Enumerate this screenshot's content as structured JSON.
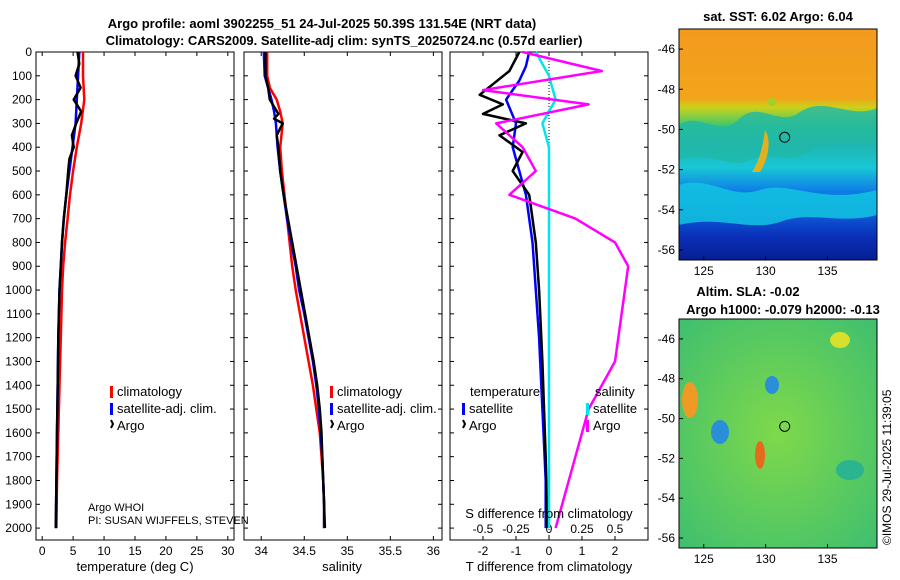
{
  "chart_data": [
    {
      "type": "line",
      "title": [
        "Argo profile: aoml 3902255_51 24-Jul-2025 50.39S 131.54E (NRT data)",
        "Climatology: CARS2009. Satellite-adj clim: synTS_20250724.nc (0.57d earlier)"
      ],
      "xlabel": "temperature (deg C)",
      "ylabel": "",
      "xlim": [
        -1,
        31
      ],
      "ylim": [
        2050,
        0
      ],
      "xticks": [
        "0",
        "5",
        "10",
        "15",
        "20",
        "25",
        "30"
      ],
      "yticks": [
        "0",
        "100",
        "200",
        "300",
        "400",
        "500",
        "600",
        "700",
        "800",
        "900",
        "1000",
        "1100",
        "1200",
        "1300",
        "1400",
        "1500",
        "1600",
        "1700",
        "1800",
        "1900",
        "2000"
      ],
      "legend": [
        "climatology",
        "satellite-adj. clim.",
        "Argo"
      ],
      "footnote": [
        "Argo WHOI",
        "PI: SUSAN WIJFFELS, STEVEN"
      ],
      "series": [
        {
          "name": "climatology",
          "color": "#ff0000",
          "points": [
            [
              6.6,
              0
            ],
            [
              6.6,
              100
            ],
            [
              6.8,
              200
            ],
            [
              6.3,
              300
            ],
            [
              5.6,
              400
            ],
            [
              5.0,
              500
            ],
            [
              4.5,
              600
            ],
            [
              4.1,
              700
            ],
            [
              3.7,
              800
            ],
            [
              3.4,
              900
            ],
            [
              3.2,
              1000
            ],
            [
              3.0,
              1200
            ],
            [
              2.8,
              1400
            ],
            [
              2.6,
              1600
            ],
            [
              2.4,
              1800
            ],
            [
              2.3,
              2000
            ]
          ]
        },
        {
          "name": "satellite-adj. clim.",
          "color": "#0000ff",
          "points": [
            [
              6.0,
              0
            ],
            [
              5.8,
              100
            ],
            [
              5.6,
              200
            ],
            [
              5.4,
              300
            ],
            [
              4.9,
              400
            ],
            [
              4.4,
              500
            ],
            [
              3.9,
              600
            ],
            [
              3.5,
              700
            ],
            [
              3.2,
              800
            ],
            [
              3.0,
              900
            ],
            [
              2.8,
              1000
            ],
            [
              2.6,
              1200
            ],
            [
              2.5,
              1400
            ],
            [
              2.4,
              1600
            ],
            [
              2.3,
              1800
            ],
            [
              2.2,
              2000
            ]
          ]
        },
        {
          "name": "Argo",
          "color": "#000000",
          "points": [
            [
              5.7,
              0
            ],
            [
              6.0,
              50
            ],
            [
              5.4,
              100
            ],
            [
              6.2,
              150
            ],
            [
              5.1,
              200
            ],
            [
              6.3,
              250
            ],
            [
              5.5,
              300
            ],
            [
              4.8,
              350
            ],
            [
              5.1,
              400
            ],
            [
              4.4,
              450
            ],
            [
              4.2,
              500
            ],
            [
              3.9,
              600
            ],
            [
              3.5,
              700
            ],
            [
              3.2,
              800
            ],
            [
              3.0,
              900
            ],
            [
              2.8,
              1000
            ],
            [
              2.6,
              1200
            ],
            [
              2.5,
              1400
            ],
            [
              2.4,
              1600
            ],
            [
              2.3,
              1800
            ],
            [
              2.2,
              2000
            ]
          ]
        }
      ]
    },
    {
      "type": "line",
      "xlabel": "salinity",
      "xlim": [
        33.8,
        36.1
      ],
      "ylim": [
        2050,
        0
      ],
      "xticks": [
        "34",
        "34.5",
        "35",
        "35.5",
        "36"
      ],
      "legend": [
        "climatology",
        "satellite-adj. clim.",
        "Argo"
      ],
      "series": [
        {
          "name": "climatology",
          "color": "#ff0000",
          "points": [
            [
              34.07,
              0
            ],
            [
              34.07,
              100
            ],
            [
              34.1,
              150
            ],
            [
              34.18,
              200
            ],
            [
              34.22,
              250
            ],
            [
              34.25,
              300
            ],
            [
              34.22,
              400
            ],
            [
              34.24,
              500
            ],
            [
              34.27,
              600
            ],
            [
              34.3,
              700
            ],
            [
              34.33,
              800
            ],
            [
              34.36,
              900
            ],
            [
              34.4,
              1000
            ],
            [
              34.45,
              1100
            ],
            [
              34.5,
              1200
            ],
            [
              34.55,
              1300
            ],
            [
              34.6,
              1400
            ],
            [
              34.64,
              1500
            ],
            [
              34.68,
              1600
            ],
            [
              34.7,
              1700
            ],
            [
              34.72,
              1800
            ],
            [
              34.73,
              1900
            ],
            [
              34.73,
              2000
            ]
          ]
        },
        {
          "name": "satellite-adj. clim.",
          "color": "#0000ff",
          "points": [
            [
              34.03,
              0
            ],
            [
              34.04,
              100
            ],
            [
              34.08,
              150
            ],
            [
              34.12,
              200
            ],
            [
              34.15,
              250
            ],
            [
              34.17,
              300
            ],
            [
              34.19,
              400
            ],
            [
              34.22,
              500
            ],
            [
              34.26,
              600
            ],
            [
              34.3,
              700
            ],
            [
              34.35,
              800
            ],
            [
              34.4,
              900
            ],
            [
              34.44,
              1000
            ],
            [
              34.5,
              1100
            ],
            [
              34.55,
              1200
            ],
            [
              34.6,
              1300
            ],
            [
              34.64,
              1400
            ],
            [
              34.67,
              1500
            ],
            [
              34.69,
              1600
            ],
            [
              34.71,
              1700
            ],
            [
              34.72,
              1800
            ],
            [
              34.73,
              1900
            ],
            [
              34.73,
              2000
            ]
          ]
        },
        {
          "name": "Argo",
          "color": "#000000",
          "points": [
            [
              34.05,
              0
            ],
            [
              34.05,
              100
            ],
            [
              34.08,
              150
            ],
            [
              34.1,
              200
            ],
            [
              34.2,
              260
            ],
            [
              34.15,
              280
            ],
            [
              34.25,
              300
            ],
            [
              34.18,
              350
            ],
            [
              34.2,
              400
            ],
            [
              34.22,
              500
            ],
            [
              34.26,
              600
            ],
            [
              34.31,
              700
            ],
            [
              34.36,
              800
            ],
            [
              34.41,
              900
            ],
            [
              34.46,
              1000
            ],
            [
              34.51,
              1100
            ],
            [
              34.56,
              1200
            ],
            [
              34.61,
              1300
            ],
            [
              34.65,
              1400
            ],
            [
              34.68,
              1500
            ],
            [
              34.7,
              1600
            ],
            [
              34.71,
              1700
            ],
            [
              34.72,
              1800
            ],
            [
              34.73,
              1900
            ],
            [
              34.74,
              2000
            ]
          ]
        }
      ]
    },
    {
      "type": "line",
      "xlabel": "T difference from climatology",
      "xlabel2": "S difference from climatology",
      "xlim": [
        -3,
        3
      ],
      "ylim": [
        2050,
        0
      ],
      "xticks": [
        "-2",
        "-1",
        "0",
        "1",
        "2"
      ],
      "xticks_s": [
        "-0.5",
        "-0.25",
        "0",
        "0.25",
        "0.5"
      ],
      "legend_left": {
        "heading": "temperature",
        "items": [
          "satellite",
          "Argo"
        ]
      },
      "legend_right": {
        "heading": "salinity",
        "items": [
          "satellite",
          "Argo"
        ]
      },
      "series": [
        {
          "name": "temperature satellite",
          "color": "#0000ff",
          "points": [
            [
              -0.6,
              0
            ],
            [
              -0.7,
              60
            ],
            [
              -0.9,
              120
            ],
            [
              -1.3,
              200
            ],
            [
              -1.0,
              300
            ],
            [
              -1.1,
              400
            ],
            [
              -0.9,
              500
            ],
            [
              -0.7,
              600
            ],
            [
              -0.6,
              700
            ],
            [
              -0.5,
              800
            ],
            [
              -0.4,
              1000
            ],
            [
              -0.3,
              1200
            ],
            [
              -0.2,
              1500
            ],
            [
              -0.1,
              1800
            ],
            [
              -0.1,
              2000
            ]
          ]
        },
        {
          "name": "temperature Argo",
          "color": "#000000",
          "points": [
            [
              -0.9,
              0
            ],
            [
              -1.2,
              80
            ],
            [
              -2.1,
              180
            ],
            [
              -1.4,
              220
            ],
            [
              -2.0,
              260
            ],
            [
              -0.7,
              300
            ],
            [
              -1.5,
              350
            ],
            [
              -0.8,
              420
            ],
            [
              -1.1,
              500
            ],
            [
              -0.6,
              600
            ],
            [
              -0.5,
              700
            ],
            [
              -0.4,
              800
            ],
            [
              -0.3,
              1000
            ],
            [
              -0.2,
              1300
            ],
            [
              -0.1,
              1700
            ],
            [
              -0.05,
              2000
            ]
          ]
        },
        {
          "name": "salinity satellite",
          "color": "#00e5ee",
          "points": [
            [
              -0.1,
              0
            ],
            [
              0.0,
              100
            ],
            [
              0.05,
              200
            ],
            [
              -0.05,
              300
            ],
            [
              0.0,
              400
            ],
            [
              0.0,
              600
            ],
            [
              0.0,
              800
            ],
            [
              0.0,
              1000
            ],
            [
              0.0,
              1500
            ],
            [
              0.0,
              2000
            ]
          ]
        },
        {
          "name": "salinity Argo",
          "color": "#ff00ff",
          "points": [
            [
              -0.2,
              0
            ],
            [
              0.4,
              80
            ],
            [
              -0.5,
              160
            ],
            [
              0.3,
              220
            ],
            [
              -0.4,
              300
            ],
            [
              -0.2,
              400
            ],
            [
              -0.1,
              500
            ],
            [
              -0.3,
              600
            ],
            [
              0.2,
              700
            ],
            [
              0.5,
              800
            ],
            [
              0.6,
              900
            ],
            [
              0.55,
              1100
            ],
            [
              0.5,
              1300
            ],
            [
              0.3,
              1500
            ],
            [
              0.2,
              1700
            ],
            [
              0.1,
              1900
            ],
            [
              0.05,
              2000
            ]
          ]
        }
      ]
    },
    {
      "type": "heatmap",
      "title": "sat. SST: 6.02 Argo: 6.04",
      "xticks": [
        "125",
        "130",
        "135"
      ],
      "yticks": [
        "-46",
        "-48",
        "-50",
        "-52",
        "-54",
        "-56"
      ],
      "xlim": [
        123,
        139
      ],
      "ylim": [
        -56.5,
        -45
      ],
      "marker": [
        131.54,
        -50.39
      ]
    },
    {
      "type": "heatmap",
      "title": [
        "Altim. SLA: -0.02",
        "Argo h1000: -0.079 h2000: -0.13"
      ],
      "xticks": [
        "125",
        "130",
        "135"
      ],
      "yticks": [
        "-46",
        "-48",
        "-50",
        "-52",
        "-54",
        "-56"
      ],
      "xlim": [
        123,
        139
      ],
      "ylim": [
        -56.5,
        -45
      ],
      "marker": [
        131.54,
        -50.39
      ]
    }
  ],
  "watermark": "©IMOS 29-Jul-2025 11:39:05"
}
